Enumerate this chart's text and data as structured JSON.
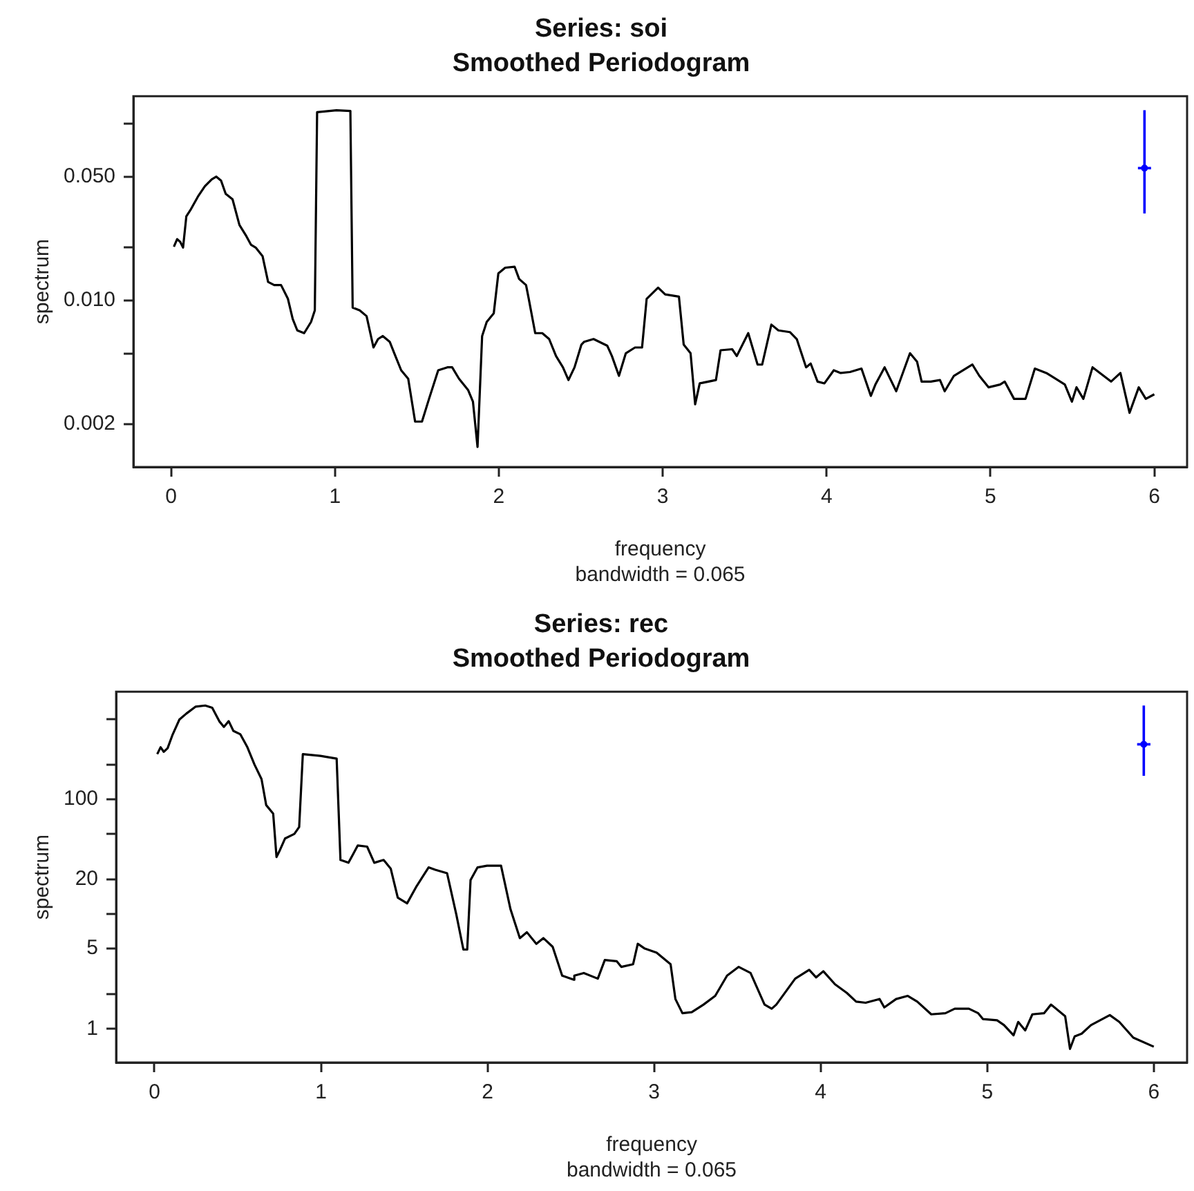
{
  "chart_data": [
    {
      "type": "line",
      "title": "Series: soi",
      "subtitle": "Smoothed Periodogram",
      "xlabel": "frequency",
      "ylabel": "spectrum",
      "annotations": [
        "bandwidth = 0.065"
      ],
      "xlim": [
        -0.23,
        6.2
      ],
      "xticks": [
        0,
        1,
        2,
        3,
        4,
        5,
        6
      ],
      "ylim": [
        0.00114,
        0.143
      ],
      "yticks": [
        0.002,
        {
          "value": 0.005,
          "label": null
        },
        {
          "value": 0.01,
          "label": "0.010"
        },
        {
          "value": 0.02,
          "label": null
        },
        {
          "value": 0.05,
          "label": "0.050"
        },
        {
          "value": 0.1,
          "label": null
        }
      ],
      "log": true,
      "grid": false,
      "legend": false,
      "line_style": "solid",
      "series": [
        {
          "color": "#000000",
          "x": [
            0.017,
            0.037,
            0.056,
            0.073,
            0.093,
            0.121,
            0.164,
            0.206,
            0.248,
            0.276,
            0.305,
            0.333,
            0.375,
            0.417,
            0.46,
            0.488,
            0.516,
            0.558,
            0.592,
            0.629,
            0.671,
            0.713,
            0.742,
            0.77,
            0.812,
            0.854,
            0.877,
            0.891,
            1.009,
            1.094,
            1.108,
            1.151,
            1.193,
            1.235,
            1.263,
            1.292,
            1.334,
            1.362,
            1.404,
            1.447,
            1.489,
            1.531,
            1.574,
            1.63,
            1.686,
            1.715,
            1.757,
            1.813,
            1.842,
            1.87,
            1.898,
            1.926,
            1.969,
            1.997,
            2.039,
            2.096,
            2.124,
            2.166,
            2.18,
            2.222,
            2.265,
            2.307,
            2.349,
            2.391,
            2.425,
            2.462,
            2.504,
            2.521,
            2.578,
            2.662,
            2.69,
            2.733,
            2.775,
            2.831,
            2.874,
            2.902,
            2.972,
            3.015,
            3.099,
            3.128,
            3.17,
            3.198,
            3.226,
            3.325,
            3.353,
            3.424,
            3.452,
            3.522,
            3.579,
            3.607,
            3.663,
            3.706,
            3.776,
            3.818,
            3.875,
            3.903,
            3.945,
            3.987,
            4.044,
            4.086,
            4.143,
            4.213,
            4.27,
            4.298,
            4.354,
            4.425,
            4.509,
            4.552,
            4.58,
            4.636,
            4.692,
            4.721,
            4.777,
            4.89,
            4.932,
            4.989,
            5.059,
            5.087,
            5.144,
            5.214,
            5.271,
            5.341,
            5.454,
            5.497,
            5.525,
            5.567,
            5.623,
            5.736,
            5.793,
            5.849,
            5.905,
            5.948,
            6.0
          ],
          "values": [
            0.0201,
            0.0222,
            0.0214,
            0.0199,
            0.0299,
            0.0328,
            0.0387,
            0.0442,
            0.0484,
            0.0501,
            0.0476,
            0.0401,
            0.0373,
            0.0267,
            0.023,
            0.0206,
            0.0199,
            0.0178,
            0.0127,
            0.0122,
            0.0122,
            0.0102,
            0.00785,
            0.00676,
            0.00652,
            0.00755,
            0.00877,
            0.116,
            0.119,
            0.118,
            0.0091,
            0.00877,
            0.00814,
            0.00541,
            0.00604,
            0.00628,
            0.00583,
            0.00502,
            0.00402,
            0.0036,
            0.00206,
            0.00206,
            0.00277,
            0.00402,
            0.00418,
            0.00418,
            0.0036,
            0.0031,
            0.00267,
            0.00148,
            0.00628,
            0.00755,
            0.00845,
            0.0142,
            0.0153,
            0.0155,
            0.0132,
            0.0122,
            0.0105,
            0.00652,
            0.00652,
            0.00604,
            0.00484,
            0.00418,
            0.00354,
            0.00418,
            0.00562,
            0.00583,
            0.00604,
            0.00553,
            0.00484,
            0.00374,
            0.00502,
            0.00541,
            0.00541,
            0.0102,
            0.0118,
            0.0108,
            0.0105,
            0.00562,
            0.00502,
            0.00258,
            0.00339,
            0.00354,
            0.00522,
            0.00529,
            0.00484,
            0.00652,
            0.00433,
            0.00433,
            0.00729,
            0.00676,
            0.00661,
            0.00604,
            0.00418,
            0.00439,
            0.00347,
            0.00339,
            0.00402,
            0.00388,
            0.00393,
            0.00411,
            0.00288,
            0.00334,
            0.00418,
            0.00306,
            0.00502,
            0.0045,
            0.00347,
            0.00347,
            0.00354,
            0.00306,
            0.00374,
            0.00433,
            0.00374,
            0.00322,
            0.00334,
            0.00347,
            0.00277,
            0.00277,
            0.00411,
            0.00388,
            0.00334,
            0.00267,
            0.00322,
            0.00277,
            0.00418,
            0.00347,
            0.00388,
            0.00231,
            0.00322,
            0.00277,
            0.00294
          ]
        },
        {
          "type": "scatter",
          "marker": "circle",
          "color": "#0000ff",
          "x": [
            5.94
          ],
          "values": [
            0.056
          ],
          "errors": [
            [
              0.031,
              0.119
            ]
          ],
          "xerrors": [
            0.04
          ]
        }
      ]
    },
    {
      "type": "line",
      "title": "Series: rec",
      "subtitle": "Smoothed Periodogram",
      "xlabel": "frequency",
      "ylabel": "spectrum",
      "annotations": [
        "bandwidth = 0.065"
      ],
      "xlim": [
        -0.23,
        6.2
      ],
      "xticks": [
        0,
        1,
        2,
        3,
        4,
        5,
        6
      ],
      "ylim": [
        0.51,
        865
      ],
      "yticks": [
        1,
        {
          "value": 2,
          "label": null
        },
        5,
        {
          "value": 10,
          "label": null
        },
        20,
        {
          "value": 50,
          "label": null
        },
        100,
        {
          "value": 200,
          "label": null
        },
        {
          "value": 500,
          "label": null
        }
      ],
      "log": true,
      "grid": false,
      "legend": false,
      "line_style": "solid",
      "series": [
        {
          "color": "#000000",
          "x": [
            0.017,
            0.037,
            0.056,
            0.079,
            0.107,
            0.15,
            0.192,
            0.248,
            0.305,
            0.347,
            0.389,
            0.417,
            0.446,
            0.474,
            0.516,
            0.558,
            0.601,
            0.643,
            0.671,
            0.713,
            0.733,
            0.75,
            0.784,
            0.84,
            0.869,
            0.891,
            0.996,
            1.094,
            1.117,
            1.165,
            1.221,
            1.277,
            1.32,
            1.376,
            1.419,
            1.461,
            1.517,
            1.574,
            1.646,
            1.686,
            1.757,
            1.813,
            1.855,
            1.878,
            1.898,
            1.94,
            1.997,
            2.081,
            2.138,
            2.194,
            2.236,
            2.293,
            2.335,
            2.391,
            2.448,
            2.519,
            2.521,
            2.578,
            2.662,
            2.704,
            2.775,
            2.803,
            2.874,
            2.902,
            2.944,
            3.015,
            3.099,
            3.128,
            3.17,
            3.226,
            3.297,
            3.367,
            3.438,
            3.508,
            3.579,
            3.663,
            3.706,
            3.734,
            3.847,
            3.931,
            3.973,
            4.016,
            4.086,
            4.157,
            4.213,
            4.27,
            4.354,
            4.382,
            4.453,
            4.523,
            4.58,
            4.664,
            4.749,
            4.805,
            4.89,
            4.946,
            4.974,
            5.059,
            5.101,
            5.158,
            5.186,
            5.228,
            5.271,
            5.341,
            5.383,
            5.468,
            5.497,
            5.525,
            5.567,
            5.623,
            5.736,
            5.793,
            5.877,
            6.0
          ],
          "values": [
            247,
            284,
            259,
            278,
            359,
            495,
            558,
            641,
            655,
            626,
            479,
            427,
            479,
            394,
            368,
            284,
            200,
            150,
            89,
            75,
            31.4,
            35.2,
            45.5,
            49.9,
            57.3,
            247,
            239,
            226,
            29.6,
            28,
            39.6,
            38.7,
            28,
            29.6,
            24.8,
            13.9,
            12.4,
            17.5,
            25.5,
            24.3,
            22.7,
            9.84,
            4.91,
            4.91,
            19.8,
            25.5,
            26.4,
            26.4,
            11,
            6.18,
            6.95,
            5.51,
            6.18,
            5.19,
            2.91,
            2.68,
            2.91,
            3.07,
            2.74,
            3.98,
            3.89,
            3.47,
            3.66,
            5.51,
            5.01,
            4.62,
            3.66,
            1.82,
            1.37,
            1.4,
            1.63,
            1.94,
            2.91,
            3.47,
            3.07,
            1.63,
            1.5,
            1.63,
            2.74,
            3.27,
            2.81,
            3.18,
            2.45,
            2.06,
            1.73,
            1.69,
            1.82,
            1.54,
            1.82,
            1.94,
            1.73,
            1.34,
            1.37,
            1.5,
            1.5,
            1.37,
            1.22,
            1.19,
            1.08,
            0.88,
            1.15,
            0.97,
            1.34,
            1.37,
            1.63,
            1.29,
            0.67,
            0.86,
            0.91,
            1.08,
            1.32,
            1.15,
            0.84,
            0.7
          ]
        },
        {
          "type": "scatter",
          "marker": "circle",
          "color": "#0000ff",
          "x": [
            5.94
          ],
          "values": [
            301
          ],
          "errors": [
            [
              160,
              655
            ]
          ],
          "xerrors": [
            0.04
          ]
        }
      ]
    }
  ]
}
